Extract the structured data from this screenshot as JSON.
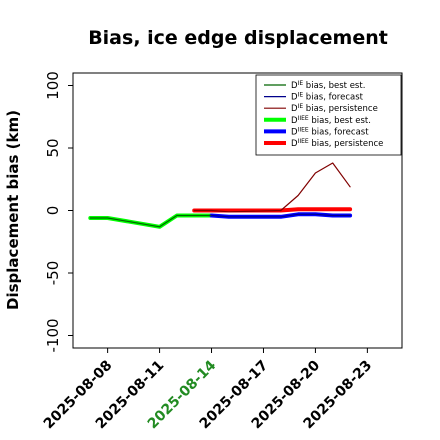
{
  "chart_data": {
    "type": "line",
    "title": "Bias, ice edge displacement",
    "ylabel": "Displacement bias (km)",
    "xlabel": "",
    "ylim": [
      -110,
      110
    ],
    "xlim": [
      "2025-08-06",
      "2025-08-25"
    ],
    "yticks": [
      -100,
      -50,
      0,
      50,
      100
    ],
    "xticks": [
      {
        "date": "2025-08-08",
        "label": "2025-08-08",
        "color": "#000000"
      },
      {
        "date": "2025-08-11",
        "label": "2025-08-11",
        "color": "#000000"
      },
      {
        "date": "2025-08-14",
        "label": "2025-08-14",
        "color": "#228B22"
      },
      {
        "date": "2025-08-17",
        "label": "2025-08-17",
        "color": "#000000"
      },
      {
        "date": "2025-08-20",
        "label": "2025-08-20",
        "color": "#000000"
      },
      {
        "date": "2025-08-23",
        "label": "2025-08-23",
        "color": "#000000"
      }
    ],
    "grid": false,
    "legend_position": "top-right",
    "series": [
      {
        "name": "D^IE bias, best est.",
        "color": "#006400",
        "width": "thin",
        "points": [
          [
            "2025-08-07",
            -6
          ],
          [
            "2025-08-08",
            -6
          ],
          [
            "2025-08-11",
            -13
          ],
          [
            "2025-08-12",
            -4
          ],
          [
            "2025-08-13",
            -4
          ],
          [
            "2025-08-14",
            -4
          ]
        ]
      },
      {
        "name": "D^IE bias, forecast",
        "color": "#00008B",
        "width": "thin",
        "points": [
          [
            "2025-08-14",
            -4
          ],
          [
            "2025-08-15",
            -5
          ],
          [
            "2025-08-16",
            -5
          ],
          [
            "2025-08-17",
            -5
          ],
          [
            "2025-08-18",
            -5
          ],
          [
            "2025-08-19",
            -3
          ],
          [
            "2025-08-20",
            -3
          ],
          [
            "2025-08-21",
            -4
          ],
          [
            "2025-08-22",
            -4
          ]
        ]
      },
      {
        "name": "D^IE bias, persistence",
        "color": "#800000",
        "width": "thin",
        "points": [
          [
            "2025-08-13",
            0
          ],
          [
            "2025-08-14",
            0
          ],
          [
            "2025-08-15",
            -1
          ],
          [
            "2025-08-18",
            0
          ],
          [
            "2025-08-19",
            12
          ],
          [
            "2025-08-20",
            30
          ],
          [
            "2025-08-21",
            38
          ],
          [
            "2025-08-22",
            19
          ]
        ]
      },
      {
        "name": "D^IIEE bias, best est.",
        "color": "#00FF00",
        "width": "thick",
        "points": [
          [
            "2025-08-07",
            -6
          ],
          [
            "2025-08-08",
            -6
          ],
          [
            "2025-08-11",
            -13
          ],
          [
            "2025-08-12",
            -4
          ],
          [
            "2025-08-13",
            -4
          ],
          [
            "2025-08-14",
            -4
          ]
        ]
      },
      {
        "name": "D^IIEE bias, forecast",
        "color": "#0000FF",
        "width": "thick",
        "points": [
          [
            "2025-08-14",
            -4
          ],
          [
            "2025-08-15",
            -5
          ],
          [
            "2025-08-18",
            -5
          ],
          [
            "2025-08-19",
            -3
          ],
          [
            "2025-08-20",
            -3
          ],
          [
            "2025-08-21",
            -4
          ],
          [
            "2025-08-22",
            -4
          ]
        ]
      },
      {
        "name": "D^IIEE bias, persistence",
        "color": "#FF0000",
        "width": "thick",
        "points": [
          [
            "2025-08-13",
            0
          ],
          [
            "2025-08-14",
            0
          ],
          [
            "2025-08-15",
            0
          ],
          [
            "2025-08-18",
            0
          ],
          [
            "2025-08-19",
            1
          ],
          [
            "2025-08-20",
            1
          ],
          [
            "2025-08-21",
            1
          ],
          [
            "2025-08-22",
            1
          ]
        ]
      }
    ],
    "legend": [
      {
        "prefix": "D",
        "sup": "IE",
        "text": " bias, best est."
      },
      {
        "prefix": "D",
        "sup": "IE",
        "text": " bias, forecast"
      },
      {
        "prefix": "D",
        "sup": "IE",
        "text": " bias, persistence"
      },
      {
        "prefix": "D",
        "sup": "IIEE",
        "text": " bias, best est."
      },
      {
        "prefix": "D",
        "sup": "IIEE",
        "text": " bias, forecast"
      },
      {
        "prefix": "D",
        "sup": "IIEE",
        "text": " bias, persistence"
      }
    ]
  }
}
